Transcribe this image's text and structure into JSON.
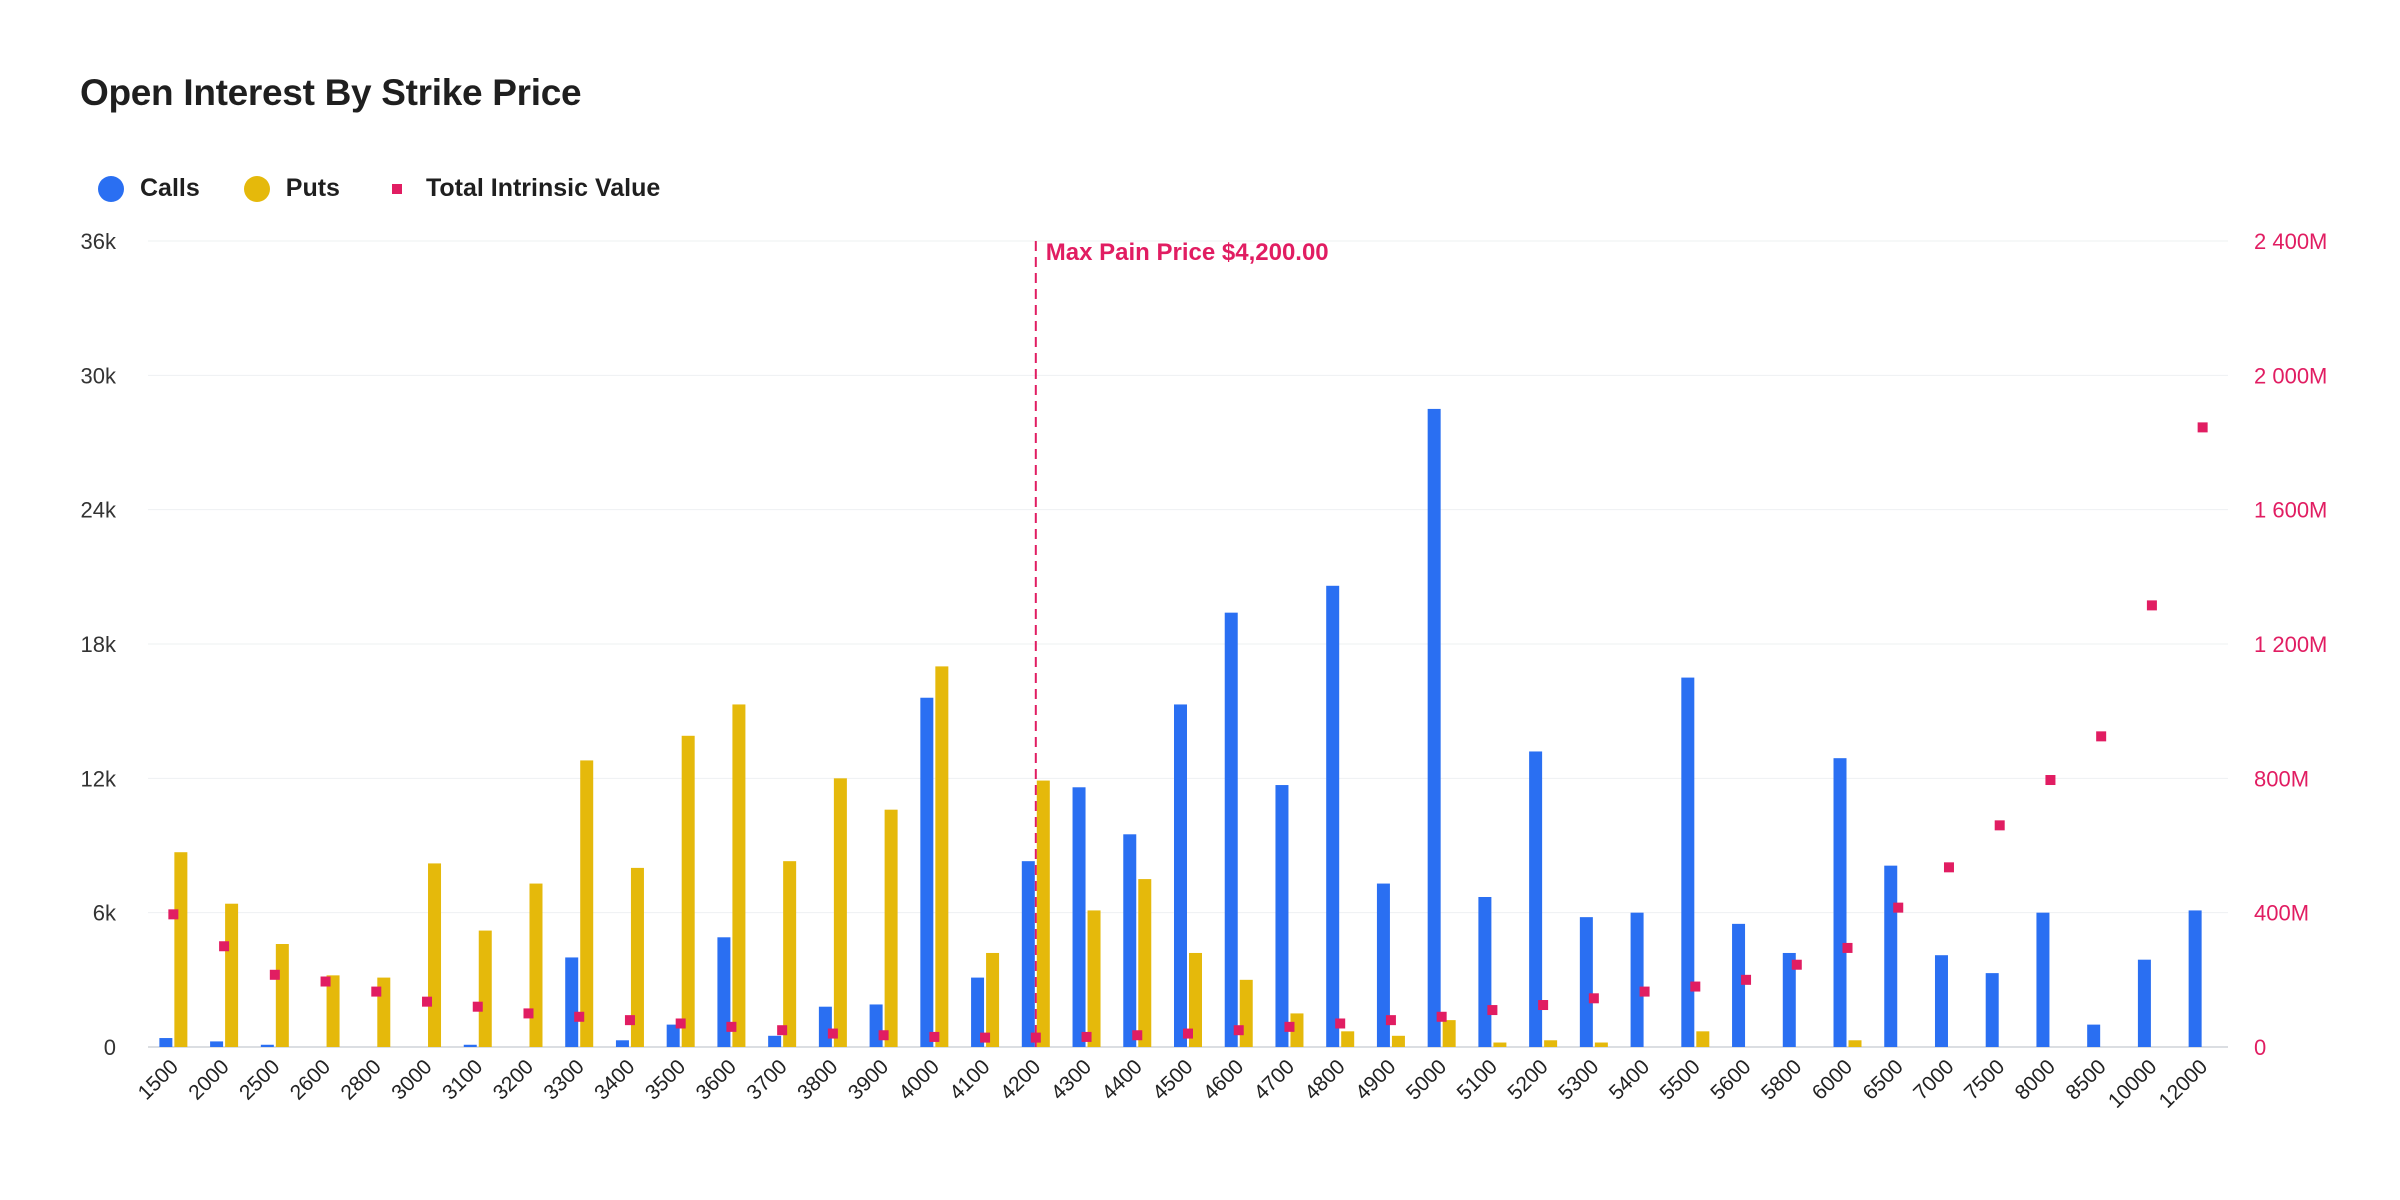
{
  "chart_data": {
    "type": "bar",
    "title": "Open Interest By Strike Price",
    "categories": [
      "1500",
      "2000",
      "2500",
      "2600",
      "2800",
      "3000",
      "3100",
      "3200",
      "3300",
      "3400",
      "3500",
      "3600",
      "3700",
      "3800",
      "3900",
      "4000",
      "4100",
      "4200",
      "4300",
      "4400",
      "4500",
      "4600",
      "4700",
      "4800",
      "4900",
      "5000",
      "5100",
      "5200",
      "5300",
      "5400",
      "5500",
      "5600",
      "5800",
      "6000",
      "6500",
      "7000",
      "7500",
      "8000",
      "8500",
      "10000",
      "12000"
    ],
    "series": [
      {
        "name": "Calls",
        "type": "bar",
        "axis": "left",
        "color": "#2a6ff2",
        "values": [
          400,
          250,
          100,
          0,
          0,
          0,
          100,
          0,
          4000,
          300,
          1000,
          4900,
          500,
          1800,
          1900,
          15600,
          3100,
          8300,
          11600,
          9500,
          15300,
          19400,
          11700,
          20600,
          7300,
          28500,
          6700,
          13200,
          5800,
          6000,
          16500,
          5500,
          4200,
          12900,
          8100,
          4100,
          3300,
          6000,
          1000,
          3900,
          6100
        ]
      },
      {
        "name": "Puts",
        "type": "bar",
        "axis": "left",
        "color": "#e5b90b",
        "values": [
          8700,
          6400,
          4600,
          3200,
          3100,
          8200,
          5200,
          7300,
          12800,
          8000,
          13900,
          15300,
          8300,
          12000,
          10600,
          17000,
          4200,
          11900,
          6100,
          7500,
          4200,
          3000,
          1500,
          700,
          500,
          1200,
          200,
          300,
          200,
          0,
          700,
          0,
          0,
          300,
          0,
          0,
          0,
          0,
          0,
          0,
          0
        ]
      },
      {
        "name": "Total Intrinsic Value",
        "type": "scatter",
        "axis": "right",
        "color": "#e11d62",
        "values": [
          395,
          300,
          215,
          195,
          165,
          135,
          120,
          100,
          90,
          80,
          70,
          60,
          50,
          40,
          35,
          30,
          28,
          28,
          30,
          35,
          40,
          50,
          60,
          70,
          80,
          90,
          110,
          125,
          145,
          165,
          180,
          200,
          245,
          295,
          415,
          535,
          660,
          795,
          925,
          1315,
          1845
        ]
      }
    ],
    "ylim": [
      0,
      36000
    ],
    "y_ticks": [
      "0",
      "6k",
      "12k",
      "18k",
      "24k",
      "30k",
      "36k"
    ],
    "y2lim": [
      0,
      2400
    ],
    "y2_ticks": [
      "0",
      "400M",
      "800M",
      "1 200M",
      "1 600M",
      "2 000M",
      "2 400M"
    ],
    "grid": true,
    "legend_position": "top-left",
    "annotation": {
      "category": "4200",
      "label": "Max Pain Price $4,200.00",
      "color": "#e11d62"
    }
  }
}
